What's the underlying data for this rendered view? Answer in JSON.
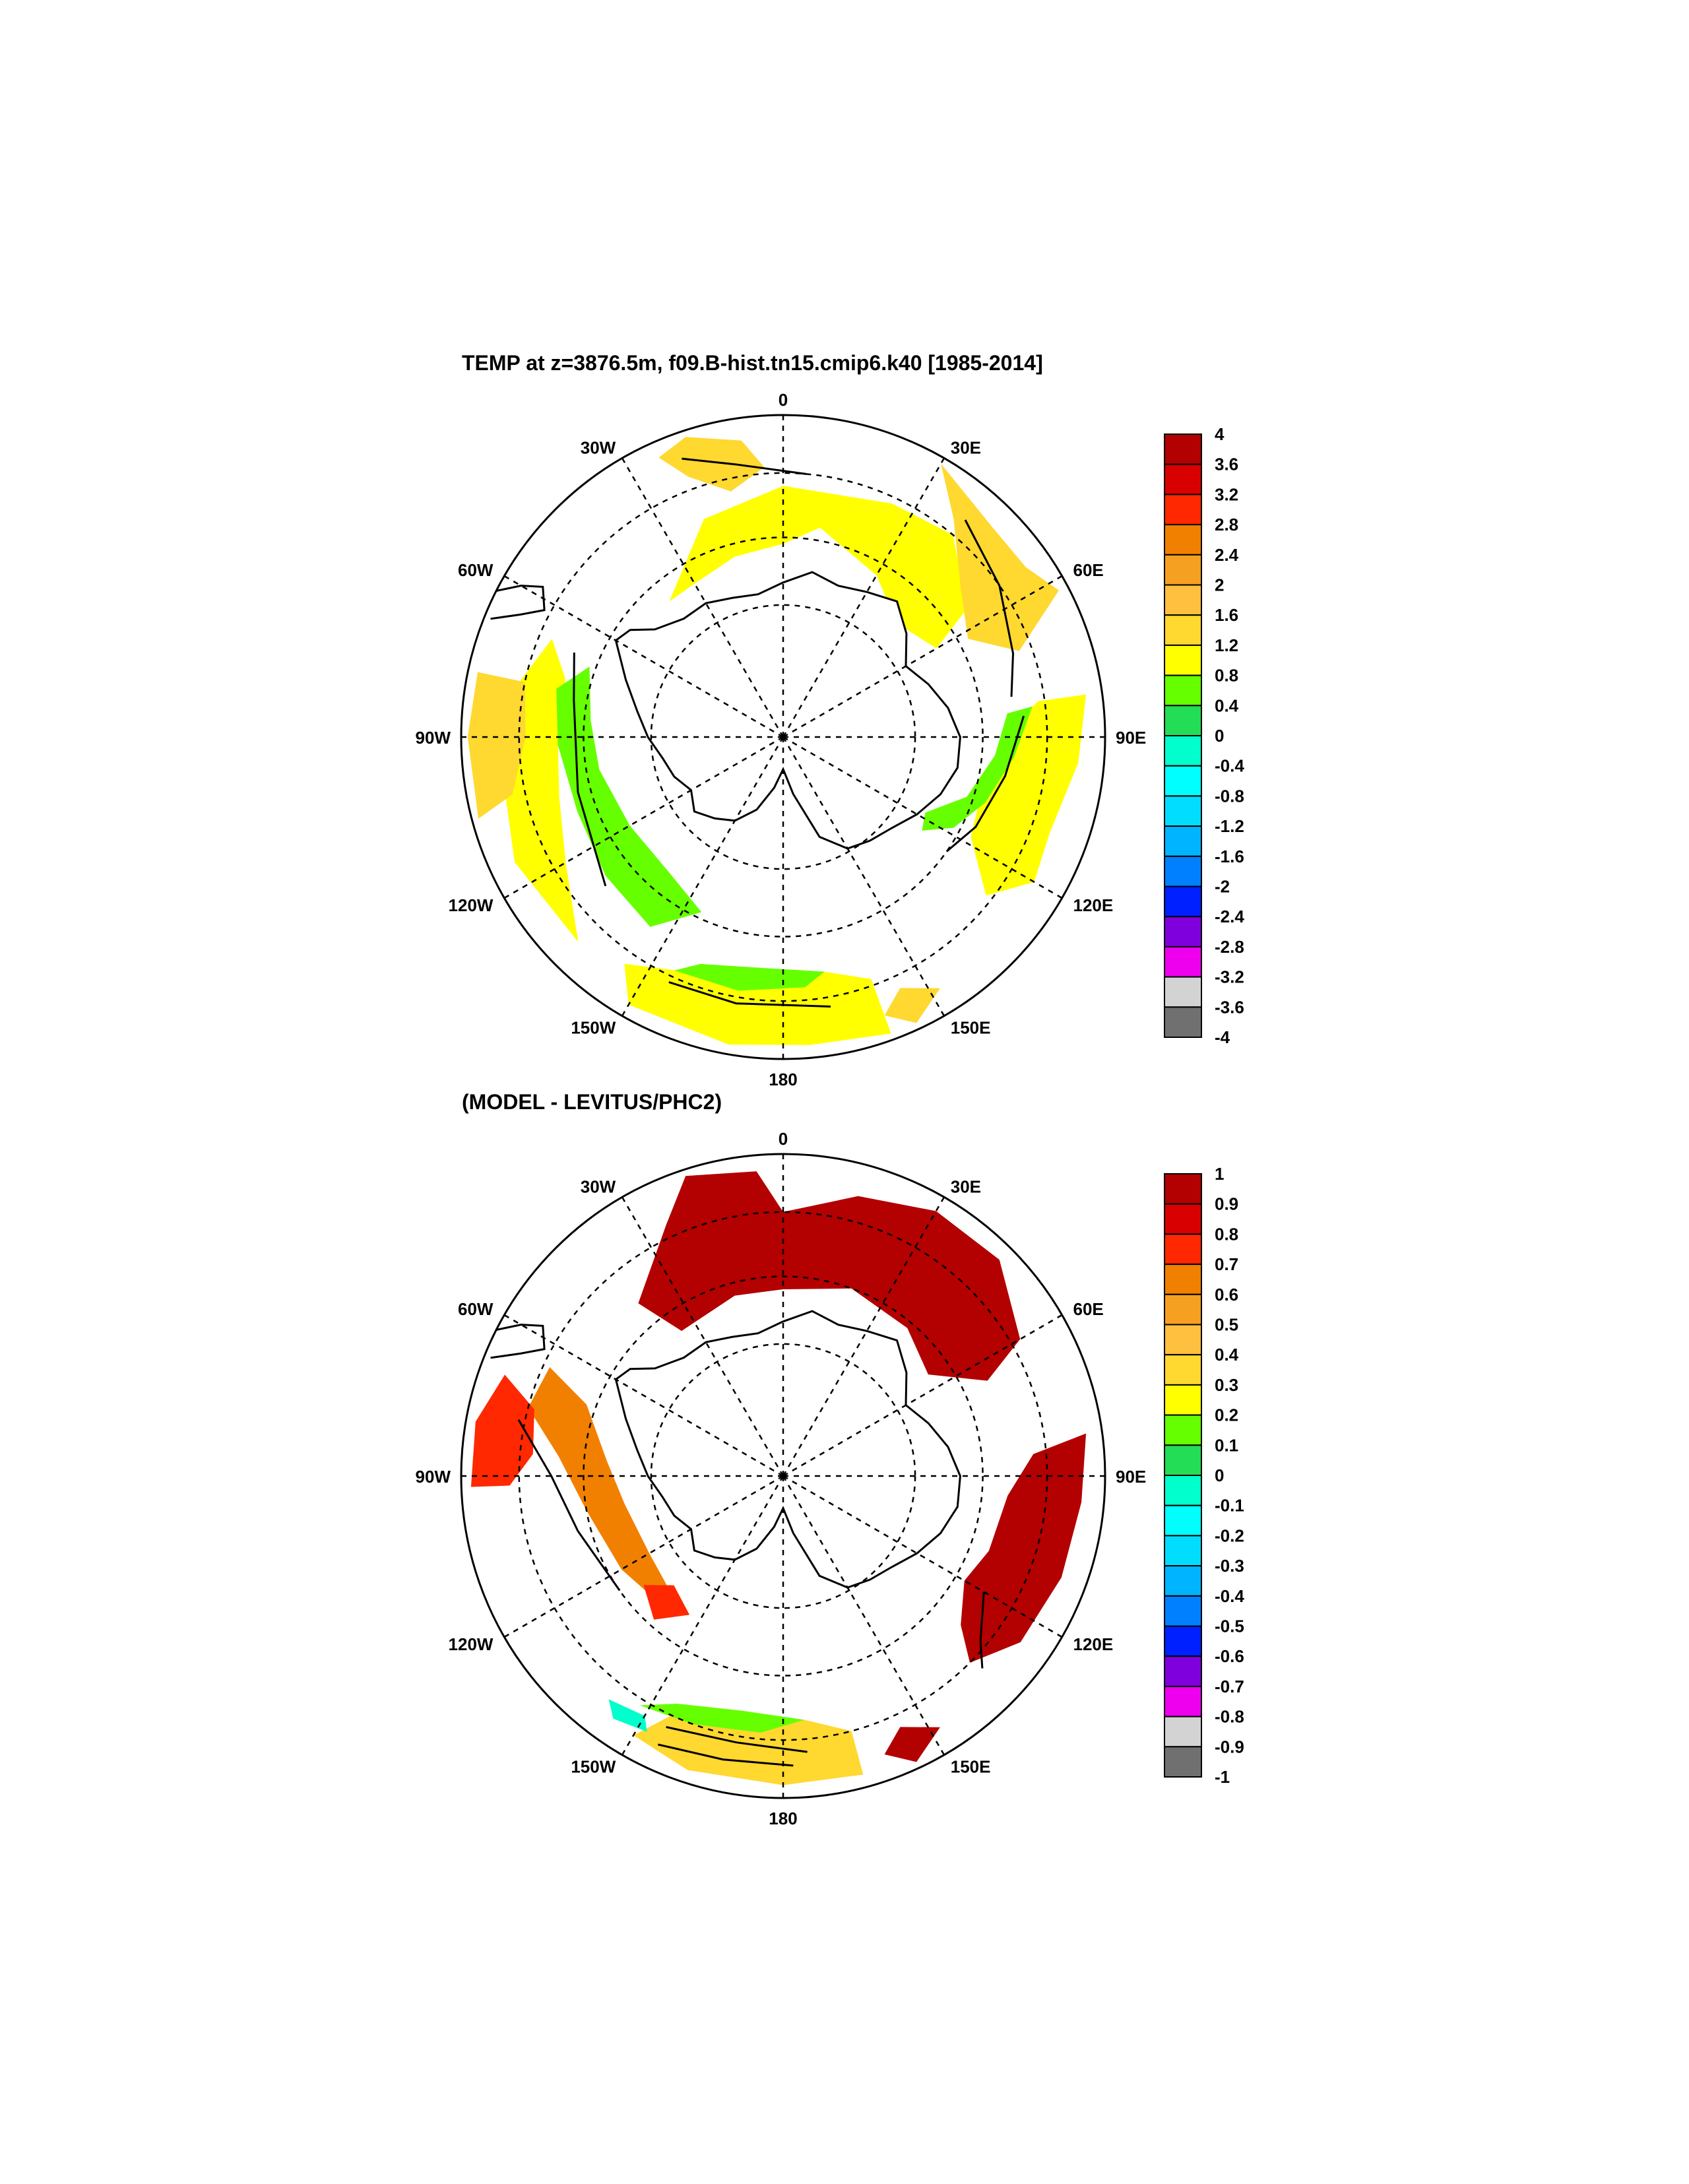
{
  "panels": [
    {
      "title": "TEMP at z=3876.5m, f09.B-hist.tn15.cmip6.k40 [1985-2014]",
      "longitude_labels": [
        "0",
        "30E",
        "60E",
        "90E",
        "120E",
        "150E",
        "180",
        "150W",
        "120W",
        "90W",
        "60W",
        "30W"
      ],
      "colorbar": {
        "labels": [
          "4",
          "3.6",
          "3.2",
          "2.8",
          "2.4",
          "2",
          "1.6",
          "1.2",
          "0.8",
          "0.4",
          "0",
          "-0.4",
          "-0.8",
          "-1.2",
          "-1.6",
          "-2",
          "-2.4",
          "-2.8",
          "-3.2",
          "-3.6",
          "-4"
        ],
        "colors": [
          "#b30000",
          "#d80000",
          "#ff2800",
          "#f28000",
          "#f5a020",
          "#ffc040",
          "#ffd830",
          "#ffff00",
          "#66ff00",
          "#22dd55",
          "#00ffcc",
          "#00ffff",
          "#00ddff",
          "#00b4ff",
          "#0080ff",
          "#0020ff",
          "#8000dd",
          "#ee00ee",
          "#d3d3d3",
          "#707070"
        ]
      }
    },
    {
      "title": "(MODEL - LEVITUS/PHC2)",
      "longitude_labels": [
        "0",
        "30E",
        "60E",
        "90E",
        "120E",
        "150E",
        "180",
        "150W",
        "120W",
        "90W",
        "60W",
        "30W"
      ],
      "colorbar": {
        "labels": [
          "1",
          "0.9",
          "0.8",
          "0.7",
          "0.6",
          "0.5",
          "0.4",
          "0.3",
          "0.2",
          "0.1",
          "0",
          "-0.1",
          "-0.2",
          "-0.3",
          "-0.4",
          "-0.5",
          "-0.6",
          "-0.7",
          "-0.8",
          "-0.9",
          "-1"
        ],
        "colors": [
          "#b30000",
          "#d80000",
          "#ff2800",
          "#f28000",
          "#f5a020",
          "#ffc040",
          "#ffd830",
          "#ffff00",
          "#66ff00",
          "#22dd55",
          "#00ffcc",
          "#00ffff",
          "#00ddff",
          "#00b4ff",
          "#0080ff",
          "#0020ff",
          "#8000dd",
          "#ee00ee",
          "#d3d3d3",
          "#707070"
        ]
      }
    }
  ],
  "colors": {
    "yellow": "#ffff00",
    "light_orange": "#ffd830",
    "green": "#66ff00",
    "dark_red": "#b30000",
    "orange": "#f28000",
    "red": "#ff2800",
    "light_orange_2": "#f5a020",
    "medium_green": "#22dd55",
    "cyan": "#00ffcc"
  }
}
